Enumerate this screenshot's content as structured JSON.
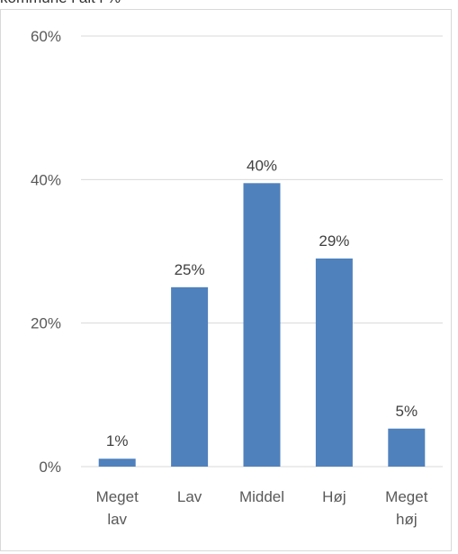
{
  "header": {
    "clipped_text": "kommune i alt i %"
  },
  "chart_data": {
    "type": "bar",
    "categories": [
      [
        "Meget",
        "lav"
      ],
      [
        "Lav"
      ],
      [
        "Middel"
      ],
      [
        "Høj"
      ],
      [
        "Meget",
        "høj"
      ]
    ],
    "values": [
      1,
      25,
      40,
      29,
      5
    ],
    "bar_heights_pct": [
      1.1,
      25.0,
      39.5,
      29.0,
      5.3
    ],
    "data_labels": [
      "1%",
      "25%",
      "40%",
      "29%",
      "5%"
    ],
    "y_ticks": [
      "0%",
      "20%",
      "40%",
      "60%"
    ],
    "ylim": [
      0,
      60
    ],
    "grid": true,
    "bar_color": "#4f81bd",
    "grid_color": "#d9d9d9"
  }
}
